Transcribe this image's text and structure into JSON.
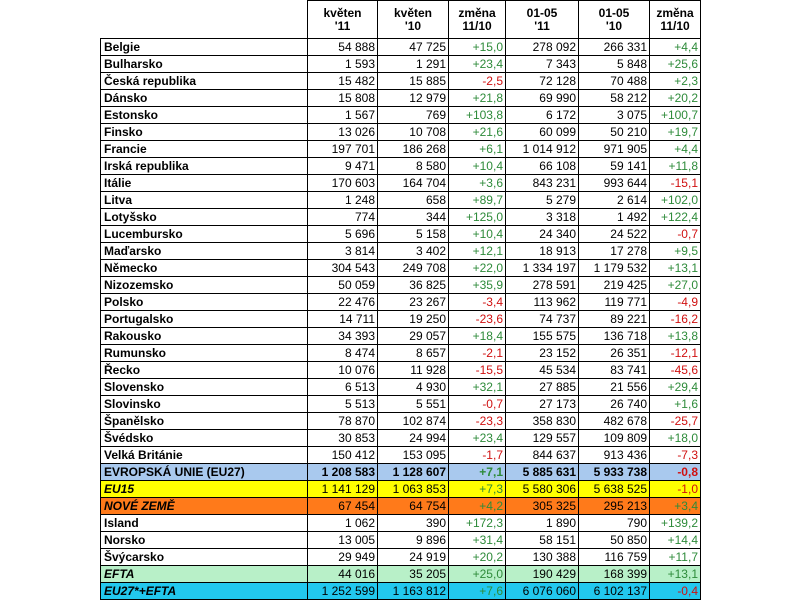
{
  "table": {
    "headers": [
      {
        "l1": "",
        "l2": ""
      },
      {
        "l1": "květen",
        "l2": "'11"
      },
      {
        "l1": "květen",
        "l2": "'10"
      },
      {
        "l1": "změna",
        "l2": "11/10"
      },
      {
        "l1": "01-05",
        "l2": "'11"
      },
      {
        "l1": "01-05",
        "l2": "'10"
      },
      {
        "l1": "změna",
        "l2": "11/10"
      }
    ],
    "rows": [
      {
        "country": "Belgie",
        "may11": "54 888",
        "may10": "47 725",
        "ch1": "+15,0",
        "ytd11": "278 092",
        "ytd10": "266 331",
        "ch2": "+4,4",
        "style": ""
      },
      {
        "country": "Bulharsko",
        "may11": "1 593",
        "may10": "1 291",
        "ch1": "+23,4",
        "ytd11": "7 343",
        "ytd10": "5 848",
        "ch2": "+25,6",
        "style": ""
      },
      {
        "country": "Česká republika",
        "may11": "15 482",
        "may10": "15 885",
        "ch1": "-2,5",
        "ytd11": "72 128",
        "ytd10": "70 488",
        "ch2": "+2,3",
        "style": ""
      },
      {
        "country": "Dánsko",
        "may11": "15 808",
        "may10": "12 979",
        "ch1": "+21,8",
        "ytd11": "69 990",
        "ytd10": "58 212",
        "ch2": "+20,2",
        "style": ""
      },
      {
        "country": "Estonsko",
        "may11": "1 567",
        "may10": "769",
        "ch1": "+103,8",
        "ytd11": "6 172",
        "ytd10": "3 075",
        "ch2": "+100,7",
        "style": ""
      },
      {
        "country": "Finsko",
        "may11": "13 026",
        "may10": "10 708",
        "ch1": "+21,6",
        "ytd11": "60 099",
        "ytd10": "50 210",
        "ch2": "+19,7",
        "style": ""
      },
      {
        "country": "Francie",
        "may11": "197 701",
        "may10": "186 268",
        "ch1": "+6,1",
        "ytd11": "1 014 912",
        "ytd10": "971 905",
        "ch2": "+4,4",
        "style": ""
      },
      {
        "country": "Irská republika",
        "may11": "9 471",
        "may10": "8 580",
        "ch1": "+10,4",
        "ytd11": "66 108",
        "ytd10": "59 141",
        "ch2": "+11,8",
        "style": ""
      },
      {
        "country": "Itálie",
        "may11": "170 603",
        "may10": "164 704",
        "ch1": "+3,6",
        "ytd11": "843 231",
        "ytd10": "993 644",
        "ch2": "-15,1",
        "style": ""
      },
      {
        "country": "Litva",
        "may11": "1 248",
        "may10": "658",
        "ch1": "+89,7",
        "ytd11": "5 279",
        "ytd10": "2 614",
        "ch2": "+102,0",
        "style": ""
      },
      {
        "country": "Lotyšsko",
        "may11": "774",
        "may10": "344",
        "ch1": "+125,0",
        "ytd11": "3 318",
        "ytd10": "1 492",
        "ch2": "+122,4",
        "style": ""
      },
      {
        "country": "Lucembursko",
        "may11": "5 696",
        "may10": "5 158",
        "ch1": "+10,4",
        "ytd11": "24 340",
        "ytd10": "24 522",
        "ch2": "-0,7",
        "style": ""
      },
      {
        "country": "Maďarsko",
        "may11": "3 814",
        "may10": "3 402",
        "ch1": "+12,1",
        "ytd11": "18 913",
        "ytd10": "17 278",
        "ch2": "+9,5",
        "style": ""
      },
      {
        "country": "Německo",
        "may11": "304 543",
        "may10": "249 708",
        "ch1": "+22,0",
        "ytd11": "1 334 197",
        "ytd10": "1 179 532",
        "ch2": "+13,1",
        "style": ""
      },
      {
        "country": "Nizozemsko",
        "may11": "50 059",
        "may10": "36 825",
        "ch1": "+35,9",
        "ytd11": "278 591",
        "ytd10": "219 425",
        "ch2": "+27,0",
        "style": ""
      },
      {
        "country": "Polsko",
        "may11": "22 476",
        "may10": "23 267",
        "ch1": "-3,4",
        "ytd11": "113 962",
        "ytd10": "119 771",
        "ch2": "-4,9",
        "style": ""
      },
      {
        "country": "Portugalsko",
        "may11": "14 711",
        "may10": "19 250",
        "ch1": "-23,6",
        "ytd11": "74 737",
        "ytd10": "89 221",
        "ch2": "-16,2",
        "style": ""
      },
      {
        "country": "Rakousko",
        "may11": "34 393",
        "may10": "29 057",
        "ch1": "+18,4",
        "ytd11": "155 575",
        "ytd10": "136 718",
        "ch2": "+13,8",
        "style": ""
      },
      {
        "country": "Rumunsko",
        "may11": "8 474",
        "may10": "8 657",
        "ch1": "-2,1",
        "ytd11": "23 152",
        "ytd10": "26 351",
        "ch2": "-12,1",
        "style": ""
      },
      {
        "country": "Řecko",
        "may11": "10 076",
        "may10": "11 928",
        "ch1": "-15,5",
        "ytd11": "45 534",
        "ytd10": "83 741",
        "ch2": "-45,6",
        "style": ""
      },
      {
        "country": "Slovensko",
        "may11": "6 513",
        "may10": "4 930",
        "ch1": "+32,1",
        "ytd11": "27 885",
        "ytd10": "21 556",
        "ch2": "+29,4",
        "style": ""
      },
      {
        "country": "Slovinsko",
        "may11": "5 513",
        "may10": "5 551",
        "ch1": "-0,7",
        "ytd11": "27 173",
        "ytd10": "26 740",
        "ch2": "+1,6",
        "style": ""
      },
      {
        "country": "Španělsko",
        "may11": "78 870",
        "may10": "102 874",
        "ch1": "-23,3",
        "ytd11": "358 830",
        "ytd10": "482 678",
        "ch2": "-25,7",
        "style": ""
      },
      {
        "country": "Švédsko",
        "may11": "30 853",
        "may10": "24 994",
        "ch1": "+23,4",
        "ytd11": "129 557",
        "ytd10": "109 809",
        "ch2": "+18,0",
        "style": ""
      },
      {
        "country": "Velká Británie",
        "may11": "150 412",
        "may10": "153 095",
        "ch1": "-1,7",
        "ytd11": "844 637",
        "ytd10": "913 436",
        "ch2": "-7,3",
        "style": ""
      },
      {
        "country": "EVROPSKÁ UNIE (EU27)",
        "may11": "1 208 583",
        "may10": "1 128 607",
        "ch1": "+7,1",
        "ytd11": "5 885 631",
        "ytd10": "5 933 738",
        "ch2": "-0,8",
        "style": "r-eu27"
      },
      {
        "country": "EU15",
        "may11": "1 141 129",
        "may10": "1 063 853",
        "ch1": "+7,3",
        "ytd11": "5 580 306",
        "ytd10": "5 638 525",
        "ch2": "-1,0",
        "style": "r-eu15 ital"
      },
      {
        "country": "NOVÉ ZEMĚ",
        "may11": "67 454",
        "may10": "64 754",
        "ch1": "+4,2",
        "ytd11": "305 325",
        "ytd10": "295 213",
        "ch2": "+3,4",
        "style": "r-new ital"
      },
      {
        "country": "Island",
        "may11": "1 062",
        "may10": "390",
        "ch1": "+172,3",
        "ytd11": "1 890",
        "ytd10": "790",
        "ch2": "+139,2",
        "style": ""
      },
      {
        "country": "Norsko",
        "may11": "13 005",
        "may10": "9 896",
        "ch1": "+31,4",
        "ytd11": "58 151",
        "ytd10": "50 850",
        "ch2": "+14,4",
        "style": ""
      },
      {
        "country": "Švýcarsko",
        "may11": "29 949",
        "may10": "24 919",
        "ch1": "+20,2",
        "ytd11": "130 388",
        "ytd10": "116 759",
        "ch2": "+11,7",
        "style": ""
      },
      {
        "country": "EFTA",
        "may11": "44 016",
        "may10": "35 205",
        "ch1": "+25,0",
        "ytd11": "190 429",
        "ytd10": "168 399",
        "ch2": "+13,1",
        "style": "r-efta ital"
      },
      {
        "country": "EU27*+EFTA",
        "may11": "1 252 599",
        "may10": "1 163 812",
        "ch1": "+7,6",
        "ytd11": "6 076 060",
        "ytd10": "6 102 137",
        "ch2": "-0,4",
        "style": "r-eu27efta ital"
      }
    ]
  },
  "colors": {
    "positive": "#2e8b3a",
    "negative": "#d01010",
    "eu27": "#a9c9ee",
    "eu15": "#ffff00",
    "new_members": "#ff7a1a",
    "efta": "#b8f0c8",
    "eu27_efta": "#22c8ee"
  }
}
